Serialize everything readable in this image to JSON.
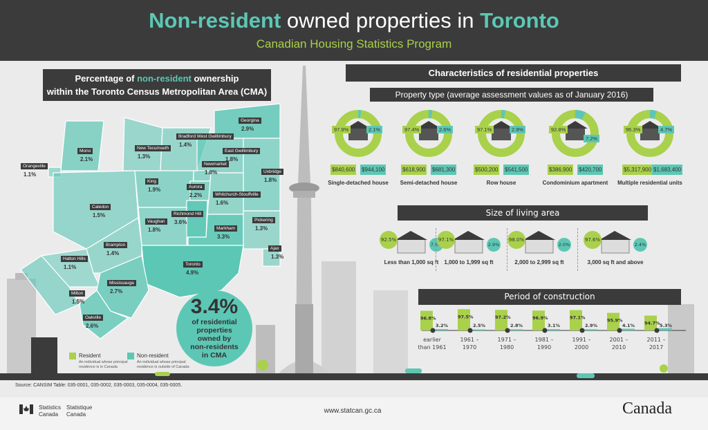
{
  "header": {
    "title_accent1": "Non-resident",
    "title_middle": " owned properties in ",
    "title_accent2": "Toronto",
    "subtitle": "Canadian Housing Statistics Program"
  },
  "colors": {
    "resident": "#a9d14b",
    "non_resident": "#5cc7b5",
    "dark": "#3b3b3b",
    "background": "#ebebeb"
  },
  "map": {
    "title_line1_pre": "Percentage of ",
    "title_line1_accent": "non-resident",
    "title_line1_post": " ownership",
    "title_line2": "within the Toronto Census Metropolitan Area (CMA)",
    "regions": [
      {
        "name": "Mono",
        "pct": "2.1%"
      },
      {
        "name": "Orangeville",
        "pct": "1.1%"
      },
      {
        "name": "Caledon",
        "pct": "1.5%"
      },
      {
        "name": "New Tecumseth",
        "pct": "1.3%"
      },
      {
        "name": "Bradford West Gwillimbury",
        "pct": "1.4%"
      },
      {
        "name": "Georgina",
        "pct": "2.9%"
      },
      {
        "name": "East Gwillimbury",
        "pct": "1.8%"
      },
      {
        "name": "Uxbridge",
        "pct": "1.8%"
      },
      {
        "name": "Newmarket",
        "pct": "1.8%"
      },
      {
        "name": "King",
        "pct": "1.9%"
      },
      {
        "name": "Aurora",
        "pct": "2.2%"
      },
      {
        "name": "Whitchurch-Stouffville",
        "pct": "1.6%"
      },
      {
        "name": "Richmond Hill",
        "pct": "3.6%"
      },
      {
        "name": "Vaughan",
        "pct": "1.8%"
      },
      {
        "name": "Markham",
        "pct": "3.3%"
      },
      {
        "name": "Pickering",
        "pct": "1.3%"
      },
      {
        "name": "Ajax",
        "pct": "1.3%"
      },
      {
        "name": "Toronto",
        "pct": "4.9%"
      },
      {
        "name": "Brampton",
        "pct": "1.4%"
      },
      {
        "name": "Halton Hills",
        "pct": "1.1%"
      },
      {
        "name": "Mississauga",
        "pct": "2.7%"
      },
      {
        "name": "Milton",
        "pct": "1.5%"
      },
      {
        "name": "Oakville",
        "pct": "2.6%"
      }
    ],
    "summary": {
      "value": "3.4%",
      "line1": "of residential",
      "line2": "properties",
      "line3": "owned by",
      "line4": "non-residents",
      "line5": "in CMA"
    },
    "legend": [
      {
        "label": "Resident",
        "desc": "An individual whose principal residence is in Canada"
      },
      {
        "label": "Non-resident",
        "desc": "An individual whose principal residence is outside of Canada"
      }
    ]
  },
  "characteristics": {
    "title": "Characteristics of residential properties",
    "property_type": {
      "title": "Property type (average assessment values as of January 2016)",
      "items": [
        {
          "name": "Single-detached house",
          "resident_pct": 97.9,
          "non_resident_pct": 2.1,
          "resident_label": "97.9%",
          "non_resident_label": "2.1%",
          "resident_value": "$840,600",
          "non_resident_value": "$944,100"
        },
        {
          "name": "Semi-detached house",
          "resident_pct": 97.4,
          "non_resident_pct": 2.6,
          "resident_label": "97.4%",
          "non_resident_label": "2.6%",
          "resident_value": "$618,900",
          "non_resident_value": "$681,300"
        },
        {
          "name": "Row house",
          "resident_pct": 97.1,
          "non_resident_pct": 2.9,
          "resident_label": "97.1%",
          "non_resident_label": "2.9%",
          "resident_value": "$500,200",
          "non_resident_value": "$541,500"
        },
        {
          "name": "Condominium apartment",
          "resident_pct": 92.8,
          "non_resident_pct": 7.2,
          "resident_label": "92.8%",
          "non_resident_label": "7.2%",
          "resident_value": "$386,900",
          "non_resident_value": "$420,700"
        },
        {
          "name": "Multiple residential units",
          "resident_pct": 95.3,
          "non_resident_pct": 4.7,
          "resident_label": "95.3%",
          "non_resident_label": "4.7%",
          "resident_value": "$5,317,900",
          "non_resident_value": "$1,683,400"
        }
      ]
    },
    "living_area": {
      "title": "Size of living area",
      "items": [
        {
          "name": "Less than 1,000 sq ft",
          "resident_label": "92.5%",
          "non_resident_label": "7.5%"
        },
        {
          "name": "1,000 to 1,999 sq ft",
          "resident_label": "97.1%",
          "non_resident_label": "2.9%"
        },
        {
          "name": "2,000 to 2,999 sq ft",
          "resident_label": "98.0%",
          "non_resident_label": "2.0%"
        },
        {
          "name": "3,000 sq ft and above",
          "resident_label": "97.6%",
          "non_resident_label": "2.4%"
        }
      ]
    },
    "construction": {
      "title": "Period of construction",
      "items": [
        {
          "period": "earlier than 1961",
          "resident_pct": 96.8,
          "non_resident_pct": 3.2,
          "resident_label": "96.8%",
          "non_resident_label": "3.2%"
        },
        {
          "period": "1961 – 1970",
          "resident_pct": 97.5,
          "non_resident_pct": 2.5,
          "resident_label": "97.5%",
          "non_resident_label": "2.5%"
        },
        {
          "period": "1971 – 1980",
          "resident_pct": 97.2,
          "non_resident_pct": 2.8,
          "resident_label": "97.2%",
          "non_resident_label": "2.8%"
        },
        {
          "period": "1981 – 1990",
          "resident_pct": 96.9,
          "non_resident_pct": 3.1,
          "resident_label": "96.9%",
          "non_resident_label": "3.1%"
        },
        {
          "period": "1991 – 2000",
          "resident_pct": 97.1,
          "non_resident_pct": 2.9,
          "resident_label": "97.1%",
          "non_resident_label": "2.9%"
        },
        {
          "period": "2001 – 2010",
          "resident_pct": 95.9,
          "non_resident_pct": 4.1,
          "resident_label": "95.9%",
          "non_resident_label": "4.1%"
        },
        {
          "period": "2011 – 2017",
          "resident_pct": 94.7,
          "non_resident_pct": 5.3,
          "resident_label": "94.7%",
          "non_resident_label": "5.3%"
        }
      ]
    }
  },
  "footer": {
    "source": "Source: CANSIM Table: 035-0001, 035-0002, 035-0003, 035-0004, 035-0005.",
    "logo_en1": "Statistics",
    "logo_en2": "Canada",
    "logo_fr1": "Statistique",
    "logo_fr2": "Canada",
    "url": "www.statcan.gc.ca",
    "wordmark": "Canada"
  }
}
